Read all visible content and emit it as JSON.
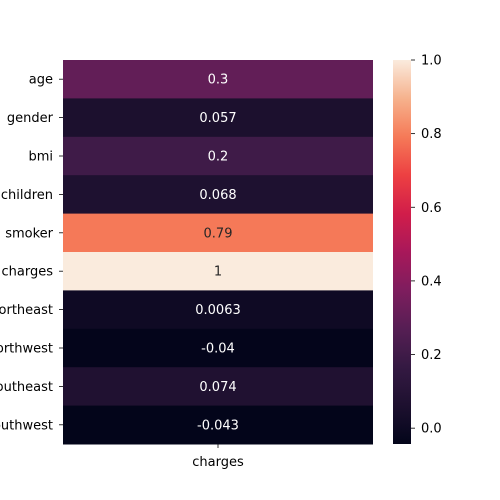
{
  "chart_data": {
    "type": "heatmap",
    "title": "",
    "xlabel": "",
    "ylabel": "",
    "columns": [
      "charges"
    ],
    "rows": [
      "age",
      "gender",
      "bmi",
      "children",
      "smoker",
      "charges",
      "northeast",
      "northwest",
      "southeast",
      "southwest"
    ],
    "values": [
      0.3,
      0.057,
      0.2,
      0.068,
      0.79,
      1,
      0.0063,
      -0.04,
      0.074,
      -0.043
    ],
    "value_labels": [
      "0.3",
      "0.057",
      "0.2",
      "0.068",
      "0.79",
      "1",
      "0.0063",
      "-0.04",
      "0.074",
      "-0.043"
    ],
    "colormap": "rocket",
    "colorbar": {
      "range": [
        -0.043,
        1.0
      ],
      "ticks": [
        0.0,
        0.2,
        0.4,
        0.6,
        0.8,
        1.0
      ],
      "tick_labels": [
        "0.0",
        "0.2",
        "0.4",
        "0.6",
        "0.8",
        "1.0"
      ]
    },
    "grid": false,
    "legend": "colorbar-right"
  }
}
